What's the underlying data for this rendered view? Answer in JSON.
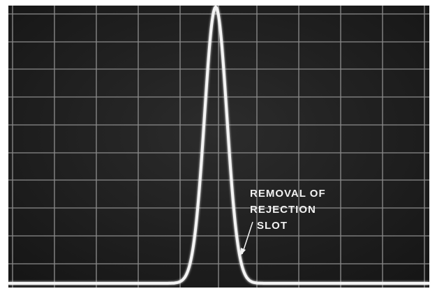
{
  "annotation": {
    "lines": [
      "REMOVAL OF",
      "REJECTION",
      "SLOT"
    ]
  }
}
